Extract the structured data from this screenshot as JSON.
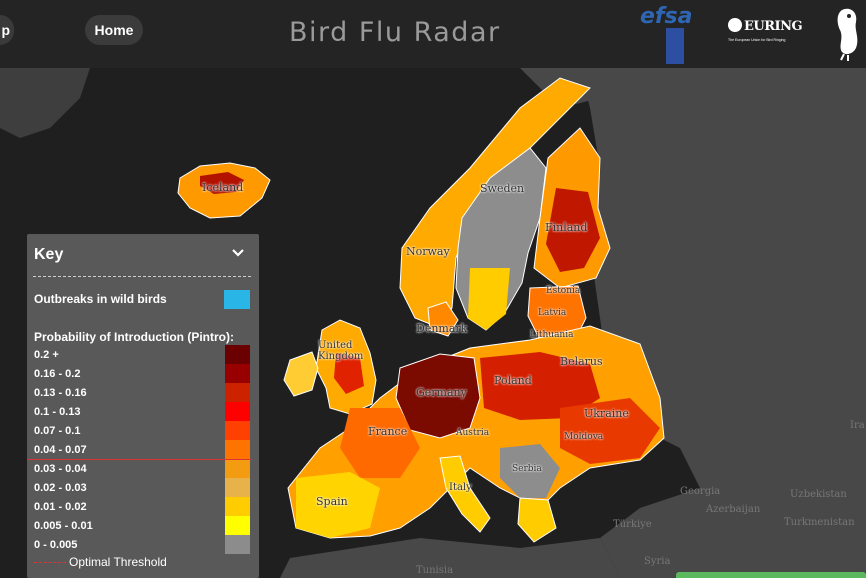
{
  "header": {
    "nav_left_label": "p",
    "home_label": "Home",
    "title": "Bird Flu Radar",
    "logos": {
      "efsa_text": "efsa",
      "euring_name": "EURING",
      "euring_tagline": "The European Union for Bird Ringing"
    }
  },
  "map": {
    "colors": {
      "land": "#4a4a4a",
      "no_data": "#8d8d8d",
      "ocean": "#1f1f1f",
      "border": "#ffffff"
    },
    "countries": [
      "Iceland",
      "Sweden",
      "Norway",
      "Finland",
      "Estonia",
      "Latvia",
      "Lithuania",
      "Denmark",
      "United Kingdom",
      "Belarus",
      "Poland",
      "Germany",
      "Ukraine",
      "France",
      "Austria",
      "Moldova",
      "Serbia",
      "Spain",
      "Italy"
    ],
    "regions": [
      "Georgia",
      "Azerbaijan",
      "Uzbekistan",
      "Türkiye",
      "Turkmenistan",
      "Syria",
      "Tunisia",
      "Ira"
    ]
  },
  "key": {
    "title": "Key",
    "outbreaks_label": "Outbreaks in wild birds",
    "outbreaks_color": "#29b6e6",
    "probability_label": "Probability of Introduction (Pintro):",
    "legend": [
      {
        "label": "0.2 +",
        "color": "#6b0000"
      },
      {
        "label": "0.16 - 0.2",
        "color": "#980000"
      },
      {
        "label": "0.13 - 0.16",
        "color": "#cc2200"
      },
      {
        "label": "0.1 - 0.13",
        "color": "#ff0000"
      },
      {
        "label": "0.07 - 0.1",
        "color": "#ff4000"
      },
      {
        "label": "0.04 - 0.07",
        "color": "#ff7300"
      },
      {
        "label": "0.03 - 0.04",
        "color": "#f39c12"
      },
      {
        "label": "0.02 - 0.03",
        "color": "#e8b24a"
      },
      {
        "label": "0.01 - 0.02",
        "color": "#ffcc00"
      },
      {
        "label": "0.005 - 0.01",
        "color": "#ffff00"
      },
      {
        "label": "0 - 0.005",
        "color": "#8c8c8c"
      }
    ],
    "threshold_label": "Optimal Threshold",
    "threshold_color": "#dd3333"
  }
}
